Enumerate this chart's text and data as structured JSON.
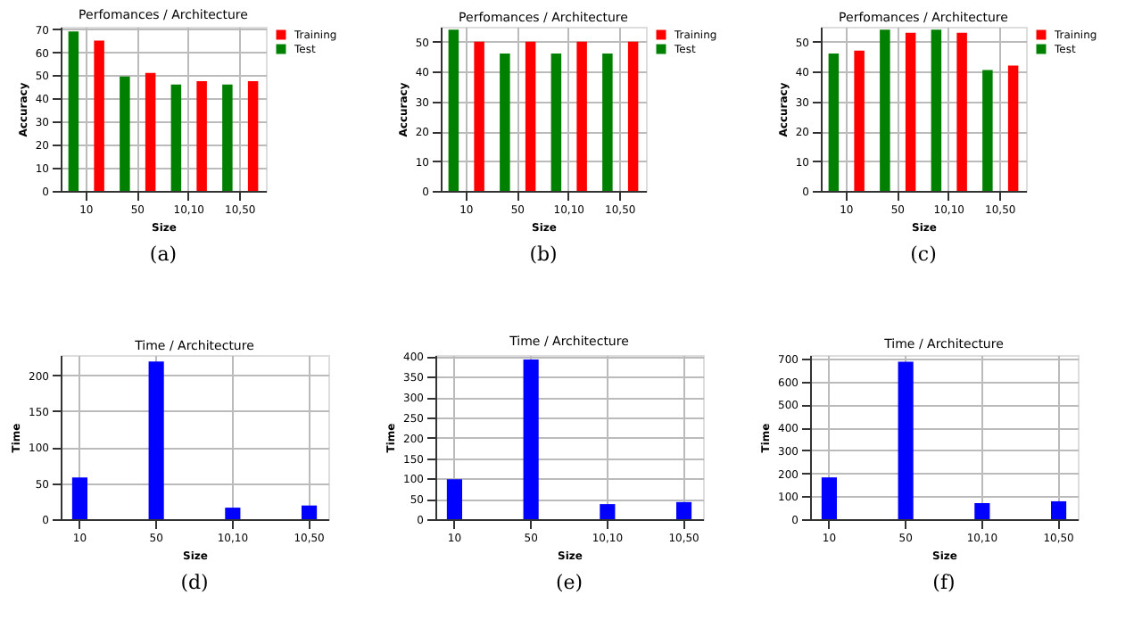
{
  "chart_data": [
    {
      "type": "bar",
      "title": "Perfomances / Architecture",
      "xlabel": "Size",
      "ylabel": "Accuracy",
      "categories": [
        "10",
        "50",
        "10,10",
        "10,50"
      ],
      "ylim": [
        0,
        71
      ],
      "yticks": [
        0,
        10,
        20,
        30,
        40,
        50,
        60,
        70
      ],
      "grid": true,
      "legend": "right",
      "annotations": [
        "(a)"
      ],
      "series": [
        {
          "name": "Training",
          "color": "#ff0000",
          "values": [
            65,
            51,
            47.5,
            47.5
          ]
        },
        {
          "name": "Test",
          "color": "#008000",
          "values": [
            69,
            49.5,
            46,
            46
          ]
        }
      ]
    },
    {
      "type": "bar",
      "title": "Perfomances / Architecture",
      "xlabel": "Size",
      "ylabel": "Accuracy",
      "categories": [
        "10",
        "50",
        "10,10",
        "10,50"
      ],
      "ylim": [
        0,
        55
      ],
      "yticks": [
        0,
        10,
        20,
        30,
        40,
        50
      ],
      "grid": true,
      "legend": "right",
      "annotations": [
        "(b)"
      ],
      "series": [
        {
          "name": "Training",
          "color": "#ff0000",
          "values": [
            50,
            50,
            50,
            50
          ]
        },
        {
          "name": "Test",
          "color": "#008000",
          "values": [
            54,
            46,
            46,
            46
          ]
        }
      ]
    },
    {
      "type": "bar",
      "title": "Perfomances / Architecture",
      "xlabel": "Size",
      "ylabel": "Accuracy",
      "categories": [
        "10",
        "50",
        "10,10",
        "10,50"
      ],
      "ylim": [
        0,
        55
      ],
      "yticks": [
        0,
        10,
        20,
        30,
        40,
        50
      ],
      "grid": true,
      "legend": "right",
      "annotations": [
        "(c)"
      ],
      "series": [
        {
          "name": "Training",
          "color": "#ff0000",
          "values": [
            47,
            53,
            53,
            42
          ]
        },
        {
          "name": "Test",
          "color": "#008000",
          "values": [
            46,
            54,
            54,
            40.5
          ]
        }
      ]
    },
    {
      "type": "bar",
      "title": "Time / Architecture",
      "xlabel": "Size",
      "ylabel": "Time",
      "categories": [
        "10",
        "50",
        "10,10",
        "10,50"
      ],
      "ylim": [
        0,
        228
      ],
      "yticks": [
        0,
        50,
        100,
        150,
        200
      ],
      "grid": true,
      "annotations": [
        "(d)"
      ],
      "series": [
        {
          "color": "#0000ff",
          "values": [
            58,
            219,
            16,
            19
          ]
        }
      ]
    },
    {
      "type": "bar",
      "title": "Time / Architecture",
      "xlabel": "Size",
      "ylabel": "Time",
      "categories": [
        "10",
        "50",
        "10,10",
        "10,50"
      ],
      "ylim": [
        0,
        403
      ],
      "yticks": [
        0,
        50,
        100,
        150,
        200,
        250,
        300,
        350,
        400
      ],
      "grid": true,
      "annotations": [
        "(e)"
      ],
      "series": [
        {
          "color": "#0000ff",
          "values": [
            98,
            392,
            37,
            42
          ]
        }
      ]
    },
    {
      "type": "bar",
      "title": "Time / Architecture",
      "xlabel": "Size",
      "ylabel": "Time",
      "categories": [
        "10",
        "50",
        "10,10",
        "10,50"
      ],
      "ylim": [
        0,
        715
      ],
      "yticks": [
        0,
        100,
        200,
        300,
        400,
        500,
        600,
        700
      ],
      "grid": true,
      "annotations": [
        "(f)"
      ],
      "series": [
        {
          "color": "#0000ff",
          "values": [
            182,
            686,
            70,
            78
          ]
        }
      ]
    }
  ]
}
